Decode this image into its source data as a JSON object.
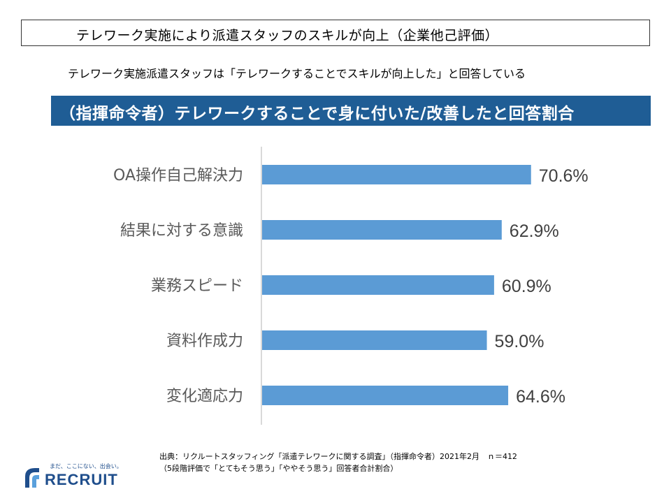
{
  "header": {
    "title": "テレワーク実施により派遣スタッフのスキルが向上（企業他己評価）",
    "subtitle": "テレワーク実施派遣スタッフは「テレワークすることでスキルが向上した」と回答している"
  },
  "chart_data": {
    "type": "bar",
    "orientation": "horizontal",
    "title": "（指揮命令者）テレワークすることで身に付いた/改善したと回答割合",
    "categories": [
      "OA操作自己解決力",
      "結果に対する意識",
      "業務スピード",
      "資料作成力",
      "変化適応力"
    ],
    "values": [
      70.6,
      62.9,
      60.9,
      59.0,
      64.6
    ],
    "value_labels": [
      "70.6%",
      "62.9%",
      "60.9%",
      "59.0%",
      "64.6%"
    ],
    "xlim": [
      0,
      100
    ],
    "grid": false,
    "bar_color": "#5b9bd5",
    "banner_color": "#1f5d95"
  },
  "footer": {
    "source_line1": "出典：リクルートスタッフィング「派遣テレワークに関する調査」（指揮命令者）2021年2月　ｎ＝412",
    "source_line2": "（5段階評価で「とてもそう思う」「ややそう思う」回答者合計割合）",
    "logo_tagline": "まだ、ここにない、出会い。",
    "logo_text": "RECRUIT",
    "logo_color": "#1f4e8c"
  }
}
